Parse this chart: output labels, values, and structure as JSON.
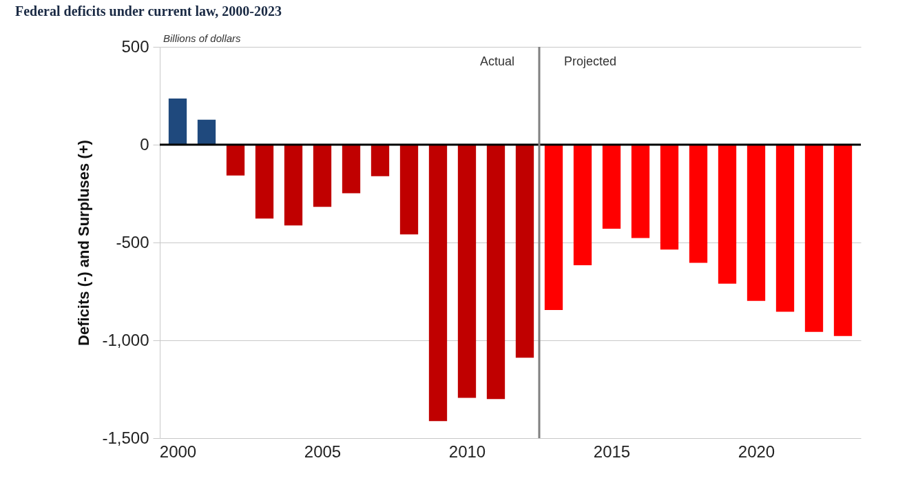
{
  "chart_data": {
    "type": "bar",
    "title": "Federal deficits under current law, 2000-2023",
    "ylabel": "Deficits (-) and Surpluses (+)",
    "annotations": [
      "Billions of dollars",
      "Actual",
      "Projected"
    ],
    "x": [
      2000,
      2001,
      2002,
      2003,
      2004,
      2005,
      2006,
      2007,
      2008,
      2009,
      2010,
      2011,
      2012,
      2013,
      2014,
      2015,
      2016,
      2017,
      2018,
      2019,
      2020,
      2021,
      2022,
      2023
    ],
    "values": [
      236,
      128,
      -158,
      -378,
      -413,
      -318,
      -248,
      -161,
      -459,
      -1413,
      -1294,
      -1300,
      -1089,
      -845,
      -616,
      -430,
      -477,
      -536,
      -604,
      -710,
      -798,
      -854,
      -957,
      -978
    ],
    "colors": [
      "#1f497d",
      "#1f497d",
      "#c00000",
      "#c00000",
      "#c00000",
      "#c00000",
      "#c00000",
      "#c00000",
      "#c00000",
      "#c00000",
      "#c00000",
      "#c00000",
      "#c00000",
      "#ff0000",
      "#ff0000",
      "#ff0000",
      "#ff0000",
      "#ff0000",
      "#ff0000",
      "#ff0000",
      "#ff0000",
      "#ff0000",
      "#ff0000",
      "#ff0000"
    ],
    "xlim": [
      1999.5,
      2023.5
    ],
    "xticks": [
      2000,
      2005,
      2010,
      2015,
      2020
    ],
    "ylim": [
      -1500,
      500
    ],
    "yticks": [
      500,
      0,
      {
        "value": -500,
        "label": "-500"
      },
      {
        "value": -1000,
        "label": "-1,000"
      },
      {
        "value": -1500,
        "label": "-1,500"
      }
    ],
    "ref_lines": [
      {
        "axis": "y",
        "value": 0,
        "color": "#000000"
      },
      {
        "axis": "x",
        "value": 2012.5,
        "color": "#808080"
      }
    ],
    "grid": "y"
  }
}
